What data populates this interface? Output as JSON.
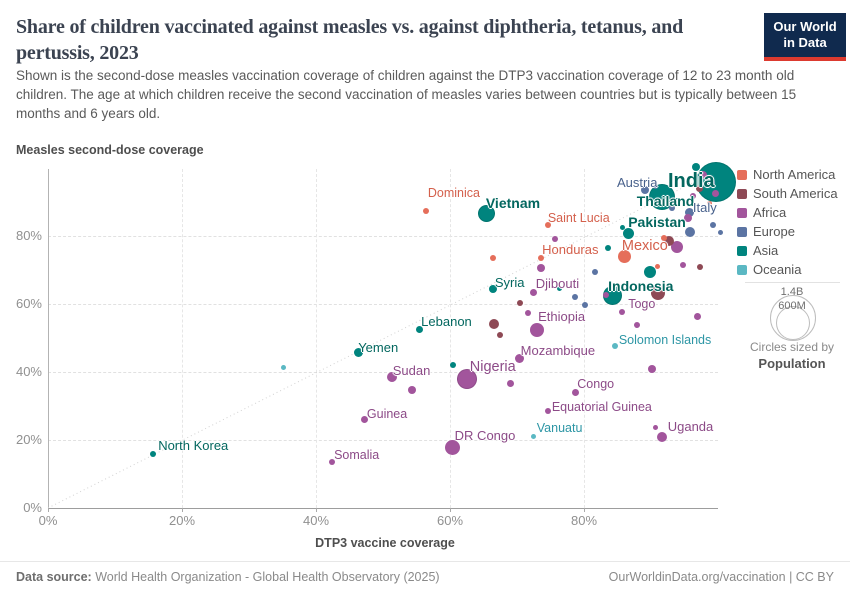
{
  "header": {
    "title": "Share of children vaccinated against measles vs. against diphtheria, tetanus, and pertussis, 2023",
    "subtitle": "Shown is the second-dose measles vaccination coverage of children against the DTP3 vaccination coverage of 12 to 23 month old children. The age at which children receive the second vaccination of measles varies between countries but is typically between 15 months and 6 years old.",
    "logo_line1": "Our World",
    "logo_line2": "in Data"
  },
  "colors": {
    "North America": "#E56E5A",
    "South America": "#8E4955",
    "Africa": "#A2559C",
    "Europe": "#5B74A3",
    "Asia": "#00847E",
    "Oceania": "#5BB8C3"
  },
  "label_colors": {
    "North America": "#D4604C",
    "South America": "#7A3B44",
    "Africa": "#8C4A87",
    "Europe": "#48618C",
    "Asia": "#03675F",
    "Oceania": "#2D96A5"
  },
  "legend": {
    "items": [
      "North America",
      "South America",
      "Africa",
      "Europe",
      "Asia",
      "Oceania"
    ]
  },
  "size_legend": {
    "outer_value": "1.4B",
    "inner_value": "600M",
    "caption": "Circles sized by",
    "caption_bold": "Population"
  },
  "footer": {
    "source_label": "Data source:",
    "source_text": " World Health Organization - Global Health Observatory (2025)",
    "right_text": "OurWorldinData.org/vaccination | CC BY"
  },
  "chart_data": {
    "type": "scatter",
    "title": "Share of children vaccinated against measles vs. against diphtheria, tetanus, and pertussis, 2023",
    "xlabel": "DTP3 vaccine coverage",
    "ylabel": "Measles second-dose coverage",
    "xlim": [
      0,
      100
    ],
    "ylim": [
      0,
      100
    ],
    "grid": true,
    "identity_line": true,
    "x_ticks": [
      {
        "label": "0%",
        "v": 0
      },
      {
        "label": "20%",
        "v": 20
      },
      {
        "label": "40%",
        "v": 40
      },
      {
        "label": "60%",
        "v": 60
      },
      {
        "label": "80%",
        "v": 80
      }
    ],
    "y_ticks": [
      {
        "label": "0%",
        "v": 0
      },
      {
        "label": "20%",
        "v": 20
      },
      {
        "label": "40%",
        "v": 40
      },
      {
        "label": "60%",
        "v": 60
      },
      {
        "label": "80%",
        "v": 80
      }
    ],
    "points": [
      {
        "name": "Dominica",
        "continent": "North America",
        "x": 56.4,
        "y": 87.4,
        "r": 3,
        "tier": "sm",
        "offset": [
          2,
          -25
        ]
      },
      {
        "name": "Vietnam",
        "continent": "Asia",
        "x": 65.5,
        "y": 86.5,
        "r": 8.5,
        "tier": "lg",
        "offset": [
          -1,
          -19
        ]
      },
      {
        "name": "Saint Lucia",
        "continent": "North America",
        "x": 74.6,
        "y": 83.2,
        "r": 3,
        "tier": "sm",
        "offset": [
          0,
          -14
        ]
      },
      {
        "name": "Austria",
        "continent": "Europe",
        "x": 89.1,
        "y": 93.5,
        "r": 4,
        "tier": "md",
        "offset": [
          -28,
          -15
        ]
      },
      {
        "name": "India",
        "continent": "Asia",
        "x": 99.7,
        "y": 95.9,
        "r": 20,
        "tier": "xl",
        "offset": [
          -48,
          -12
        ]
      },
      {
        "name": "Thailand",
        "continent": "Asia",
        "x": 91.6,
        "y": 91.5,
        "r": 13,
        "tier": "lg",
        "offset": [
          -25,
          -4
        ]
      },
      {
        "name": "Pakistan",
        "continent": "Asia",
        "x": 86.6,
        "y": 80.6,
        "r": 5.5,
        "tier": "lg",
        "offset": [
          0,
          -20
        ]
      },
      {
        "name": "Italy",
        "continent": "Europe",
        "x": 95.8,
        "y": 86.8,
        "r": 4.5,
        "tier": "md",
        "offset": [
          3,
          -13
        ]
      },
      {
        "name": "Mexico",
        "continent": "North America",
        "x": 86.1,
        "y": 74.1,
        "r": 6.5,
        "tier": "lgr",
        "offset": [
          -3,
          -18
        ]
      },
      {
        "name": "Honduras",
        "continent": "North America",
        "x": 73.6,
        "y": 73.5,
        "r": 3,
        "tier": "md",
        "offset": [
          1,
          -16
        ]
      },
      {
        "name": "Syria",
        "continent": "Asia",
        "x": 66.4,
        "y": 64.4,
        "r": 4,
        "tier": "md",
        "offset": [
          2,
          -14
        ]
      },
      {
        "name": "Djibouti",
        "continent": "Africa",
        "x": 72.5,
        "y": 63.5,
        "r": 3.5,
        "tier": "md",
        "offset": [
          2,
          -16
        ]
      },
      {
        "name": "Indonesia",
        "continent": "Asia",
        "x": 84.2,
        "y": 62.4,
        "r": 9.5,
        "tier": "lg",
        "offset": [
          -4,
          -18
        ]
      },
      {
        "name": "Togo",
        "continent": "Africa",
        "x": 85.7,
        "y": 57.6,
        "r": 3,
        "tier": "sm",
        "offset": [
          6,
          -15
        ]
      },
      {
        "name": "Lebanon",
        "continent": "Asia",
        "x": 55.4,
        "y": 52.4,
        "r": 3.5,
        "tier": "md",
        "offset": [
          2,
          -16
        ]
      },
      {
        "name": "Ethiopia",
        "continent": "Africa",
        "x": 73.0,
        "y": 52.4,
        "r": 7,
        "tier": "md",
        "offset": [
          1,
          -21
        ]
      },
      {
        "name": "Yemen",
        "continent": "Asia",
        "x": 46.3,
        "y": 45.6,
        "r": 4.5,
        "tier": "md",
        "offset": [
          0,
          -13
        ]
      },
      {
        "name": "Mozambique",
        "continent": "Africa",
        "x": 70.4,
        "y": 44.1,
        "r": 4.5,
        "tier": "md",
        "offset": [
          1,
          -15
        ]
      },
      {
        "name": "Solomon Islands",
        "continent": "Oceania",
        "x": 84.6,
        "y": 47.6,
        "r": 3,
        "tier": "sm",
        "offset": [
          4,
          -13
        ]
      },
      {
        "name": "Sudan",
        "continent": "Africa",
        "x": 51.3,
        "y": 38.5,
        "r": 5,
        "tier": "md",
        "offset": [
          1,
          -14
        ]
      },
      {
        "name": "Nigeria",
        "continent": "Africa",
        "x": 62.5,
        "y": 37.9,
        "r": 10,
        "tier": "lgr",
        "offset": [
          3,
          -20
        ]
      },
      {
        "name": "Congo",
        "continent": "Africa",
        "x": 78.7,
        "y": 34.1,
        "r": 3.5,
        "tier": "sm",
        "offset": [
          2,
          -15
        ]
      },
      {
        "name": "Guinea",
        "continent": "Africa",
        "x": 47.3,
        "y": 25.9,
        "r": 3.5,
        "tier": "sm",
        "offset": [
          2,
          -13
        ]
      },
      {
        "name": "Equatorial Guinea",
        "continent": "Africa",
        "x": 74.6,
        "y": 28.5,
        "r": 3,
        "tier": "sm",
        "offset": [
          4,
          -11
        ]
      },
      {
        "name": "DR Congo",
        "continent": "Africa",
        "x": 60.4,
        "y": 17.9,
        "r": 7.5,
        "tier": "md",
        "offset": [
          2,
          -19
        ]
      },
      {
        "name": "Vanuatu",
        "continent": "Oceania",
        "x": 72.5,
        "y": 20.9,
        "r": 2.5,
        "tier": "sm",
        "offset": [
          3,
          -16
        ]
      },
      {
        "name": "Uganda",
        "continent": "Africa",
        "x": 91.6,
        "y": 20.9,
        "r": 5,
        "tier": "md",
        "offset": [
          6,
          -18
        ]
      },
      {
        "name": "North Korea",
        "continent": "Asia",
        "x": 15.7,
        "y": 15.9,
        "r": 3,
        "tier": "md",
        "offset": [
          5,
          -16
        ]
      },
      {
        "name": "Somalia",
        "continent": "Africa",
        "x": 42.4,
        "y": 13.5,
        "r": 3,
        "tier": "sm",
        "offset": [
          2,
          -14
        ]
      }
    ],
    "unlabeled_points": [
      {
        "continent": "Oceania",
        "x": 35.1,
        "y": 41.2,
        "r": 2.5
      },
      {
        "continent": "Asia",
        "x": 60.4,
        "y": 42.1,
        "r": 3
      },
      {
        "continent": "Africa",
        "x": 69.1,
        "y": 36.5,
        "r": 3.5
      },
      {
        "continent": "Africa",
        "x": 54.3,
        "y": 34.7,
        "r": 4
      },
      {
        "continent": "Africa",
        "x": 75.7,
        "y": 79.1,
        "r": 3
      },
      {
        "continent": "North America",
        "x": 66.4,
        "y": 73.5,
        "r": 3
      },
      {
        "continent": "Africa",
        "x": 73.6,
        "y": 70.6,
        "r": 4
      },
      {
        "continent": "Asia",
        "x": 76.4,
        "y": 64.7,
        "r": 2.5
      },
      {
        "continent": "Europe",
        "x": 78.7,
        "y": 62.1,
        "r": 3
      },
      {
        "continent": "Europe",
        "x": 80.1,
        "y": 59.7,
        "r": 3
      },
      {
        "continent": "South America",
        "x": 70.4,
        "y": 60.3,
        "r": 3
      },
      {
        "continent": "South America",
        "x": 66.6,
        "y": 54.1,
        "r": 5
      },
      {
        "continent": "South America",
        "x": 67.5,
        "y": 50.9,
        "r": 3
      },
      {
        "continent": "Africa",
        "x": 71.6,
        "y": 57.4,
        "r": 3
      },
      {
        "continent": "Africa",
        "x": 83.3,
        "y": 62.6,
        "r": 3
      },
      {
        "continent": "South America",
        "x": 91.0,
        "y": 63.2,
        "r": 7
      },
      {
        "continent": "Asia",
        "x": 89.9,
        "y": 69.4,
        "r": 6
      },
      {
        "continent": "North America",
        "x": 90.9,
        "y": 70.9,
        "r": 2.5
      },
      {
        "continent": "Africa",
        "x": 94.8,
        "y": 71.5,
        "r": 3
      },
      {
        "continent": "South America",
        "x": 97.3,
        "y": 70.9,
        "r": 3
      },
      {
        "continent": "Africa",
        "x": 87.9,
        "y": 53.8,
        "r": 3
      },
      {
        "continent": "Africa",
        "x": 97.0,
        "y": 56.2,
        "r": 3.5
      },
      {
        "continent": "Africa",
        "x": 90.1,
        "y": 40.9,
        "r": 4
      },
      {
        "continent": "Africa",
        "x": 90.7,
        "y": 23.8,
        "r": 2.5
      },
      {
        "continent": "Asia",
        "x": 83.6,
        "y": 76.5,
        "r": 3
      },
      {
        "continent": "Europe",
        "x": 81.6,
        "y": 69.4,
        "r": 3
      },
      {
        "continent": "Asia",
        "x": 85.8,
        "y": 82.4,
        "r": 2.5
      },
      {
        "continent": "North America",
        "x": 91.9,
        "y": 79.4,
        "r": 3
      },
      {
        "continent": "South America",
        "x": 92.7,
        "y": 78.5,
        "r": 5
      },
      {
        "continent": "Africa",
        "x": 93.9,
        "y": 76.8,
        "r": 6
      },
      {
        "continent": "Europe",
        "x": 95.8,
        "y": 81.2,
        "r": 5
      },
      {
        "continent": "Europe",
        "x": 99.3,
        "y": 83.2,
        "r": 3
      },
      {
        "continent": "Europe",
        "x": 100.4,
        "y": 80.9,
        "r": 2.5
      },
      {
        "continent": "Africa",
        "x": 95.5,
        "y": 85.3,
        "r": 4
      },
      {
        "continent": "Europe",
        "x": 90.6,
        "y": 94.7,
        "r": 2.5
      },
      {
        "continent": "Africa",
        "x": 97.8,
        "y": 97.9,
        "r": 4
      },
      {
        "continent": "Europe",
        "x": 99.1,
        "y": 95.6,
        "r": 3.5
      },
      {
        "continent": "South America",
        "x": 97.3,
        "y": 94.1,
        "r": 3.5
      },
      {
        "continent": "Africa",
        "x": 99.6,
        "y": 92.6,
        "r": 3.5
      },
      {
        "continent": "Asia",
        "x": 100.5,
        "y": 97.0,
        "r": 3
      },
      {
        "continent": "Africa",
        "x": 96.3,
        "y": 91.8,
        "r": 3
      },
      {
        "continent": "Asia",
        "x": 96.7,
        "y": 100.2,
        "r": 4
      },
      {
        "continent": "North America",
        "x": 98.8,
        "y": 89.7,
        "r": 2.5
      },
      {
        "continent": "Asia",
        "x": 93.9,
        "y": 90.3,
        "r": 3
      },
      {
        "continent": "Europe",
        "x": 93.1,
        "y": 88.2,
        "r": 3
      }
    ]
  }
}
